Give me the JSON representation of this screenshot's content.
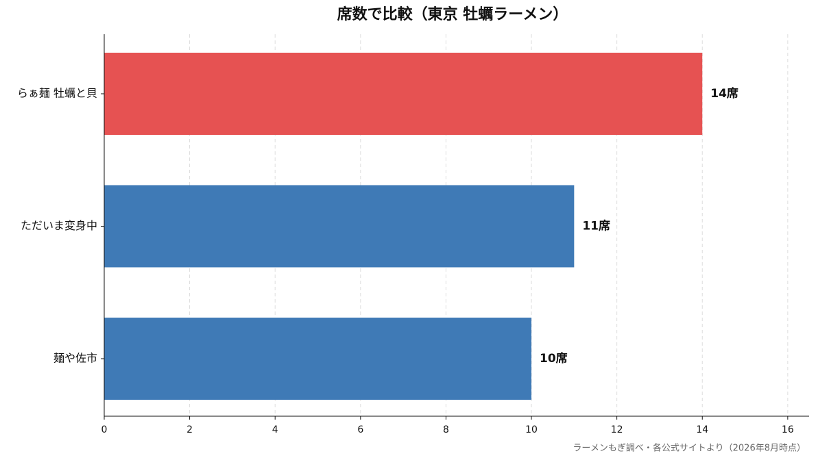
{
  "chart_data": {
    "type": "barh",
    "title": "席数で比較（東京 牡蠣ラーメン）",
    "categories": [
      "らぁ麺 牡蠣と貝",
      "ただいま変身中",
      "麺や佐市"
    ],
    "values": [
      14,
      11,
      10
    ],
    "value_labels": [
      "14席",
      "11席",
      "10席"
    ],
    "colors": [
      "#e65252",
      "#3f7ab6",
      "#3f7ab6"
    ],
    "xlim": [
      0,
      16.5
    ],
    "xticks": [
      0,
      2,
      4,
      6,
      8,
      10,
      12,
      14,
      16
    ],
    "grid": true,
    "source": "ラーメンもぎ調べ・各公式サイトより（2026年8月時点）"
  }
}
